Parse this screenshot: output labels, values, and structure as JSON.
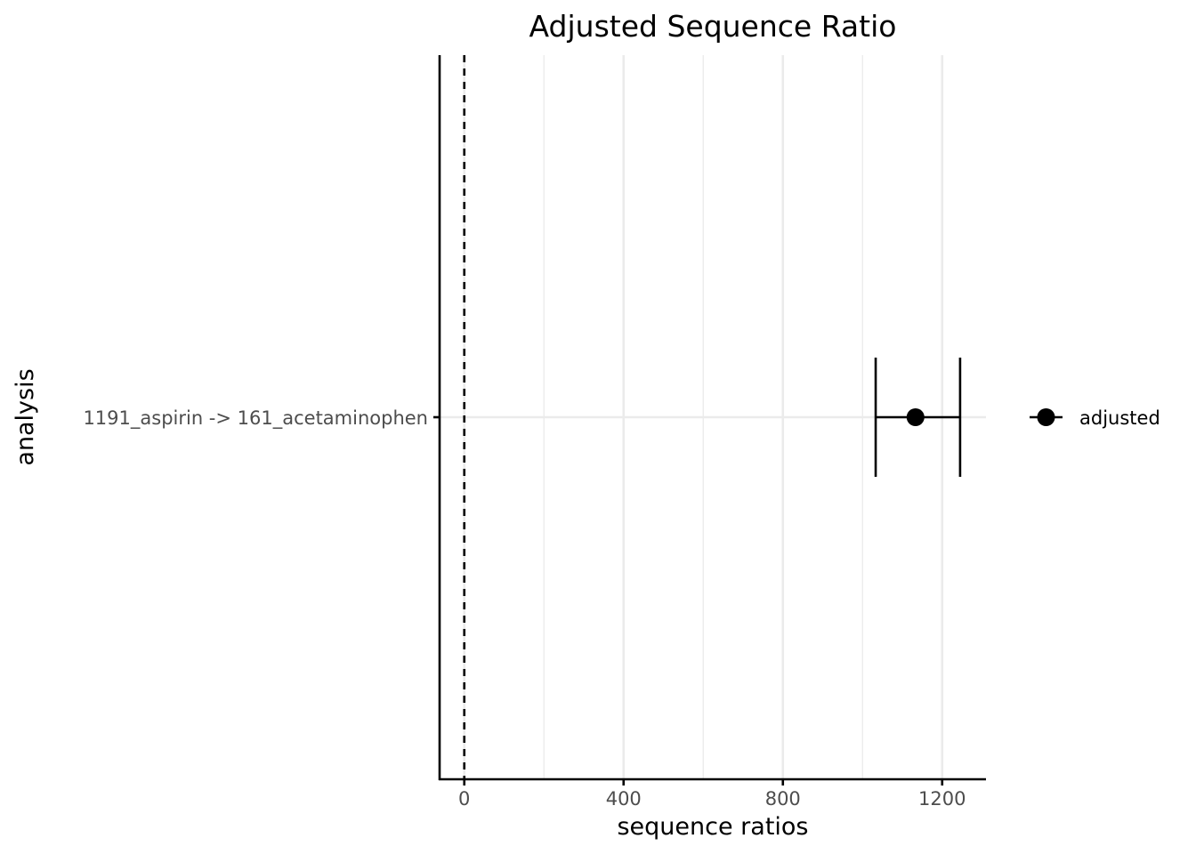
{
  "chart_data": {
    "type": "scatter",
    "title": "Adjusted Sequence Ratio",
    "xlabel": "sequence ratios",
    "ylabel": "analysis",
    "xlim": [
      -62,
      1310
    ],
    "x_ticks": [
      0,
      400,
      800,
      1200
    ],
    "x_tick_labels": [
      "0",
      "400",
      "800",
      "1200"
    ],
    "x_minor_gridlines": [
      200,
      600,
      1000
    ],
    "reference_line": {
      "x": 0,
      "style": "dashed"
    },
    "categories": [
      "1191_aspirin -> 161_acetaminophen"
    ],
    "series": [
      {
        "name": "adjusted",
        "points": [
          {
            "category": "1191_aspirin -> 161_acetaminophen",
            "estimate": 1133,
            "lower": 1033,
            "upper": 1245
          }
        ]
      }
    ],
    "grid": true,
    "legend_position": "right",
    "colors": {
      "series": "#000000",
      "grid": "#ebebeb",
      "axis": "#000000",
      "tick_text": "#4d4d4d"
    }
  }
}
